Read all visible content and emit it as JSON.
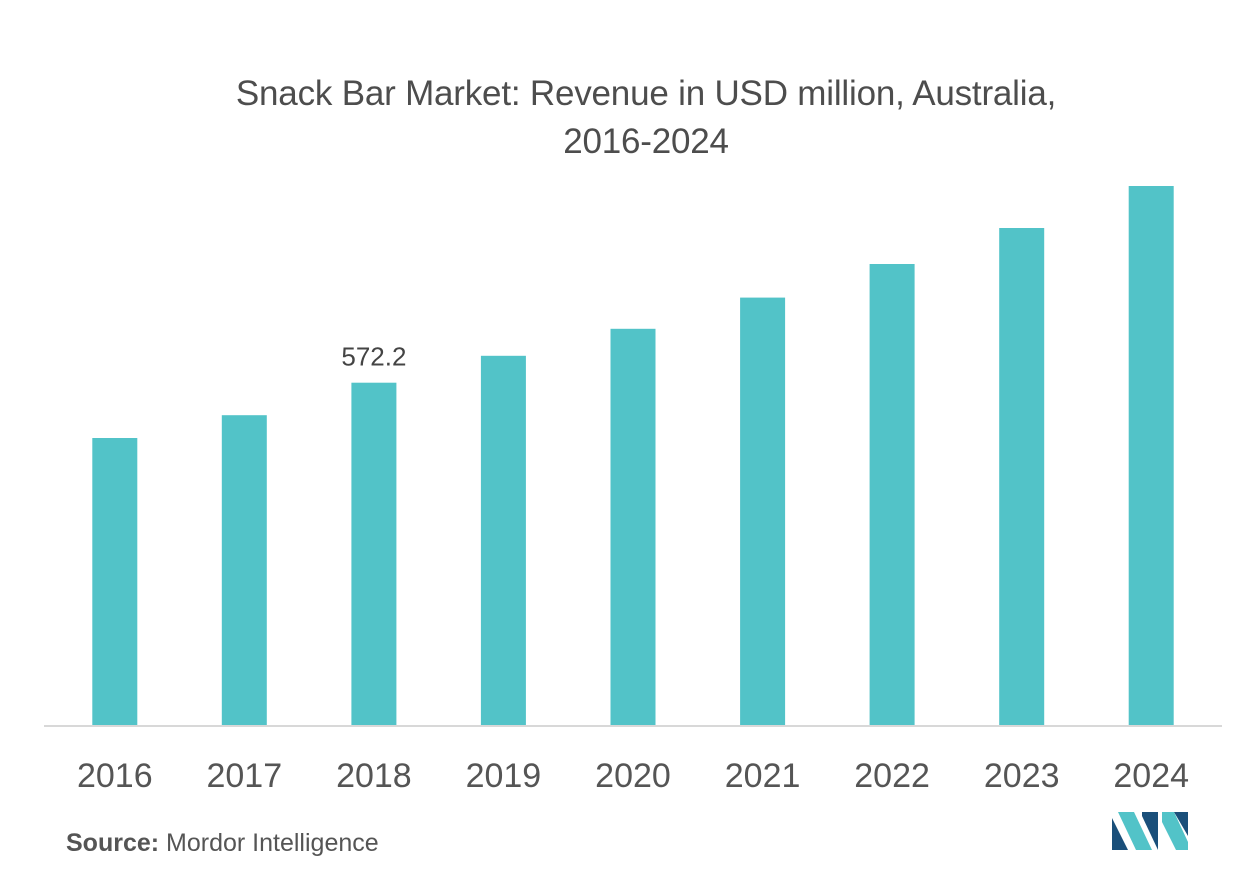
{
  "chart_data": {
    "type": "bar",
    "title_line1": "Snack Bar Market: Revenue in USD million, Australia,",
    "title_line2": "2016-2024",
    "categories": [
      "2016",
      "2017",
      "2018",
      "2019",
      "2020",
      "2021",
      "2022",
      "2023",
      "2024"
    ],
    "values": [
      480,
      518,
      572.2,
      617,
      662,
      714,
      770,
      830,
      900
    ],
    "data_labels": [
      {
        "category": "2018",
        "text": "572.2"
      }
    ],
    "xlabel": "",
    "ylabel": "",
    "ylim": [
      0,
      1000
    ],
    "grid": false,
    "bar_color": "#52c3c8",
    "axis_color": "#d8d8d8"
  },
  "source": {
    "label": "Source:",
    "text": "Mordor Intelligence"
  },
  "logo": {
    "icon": "mordor-intelligence-logo-icon",
    "colors": [
      "#1a4f7a",
      "#52c3c8"
    ]
  }
}
